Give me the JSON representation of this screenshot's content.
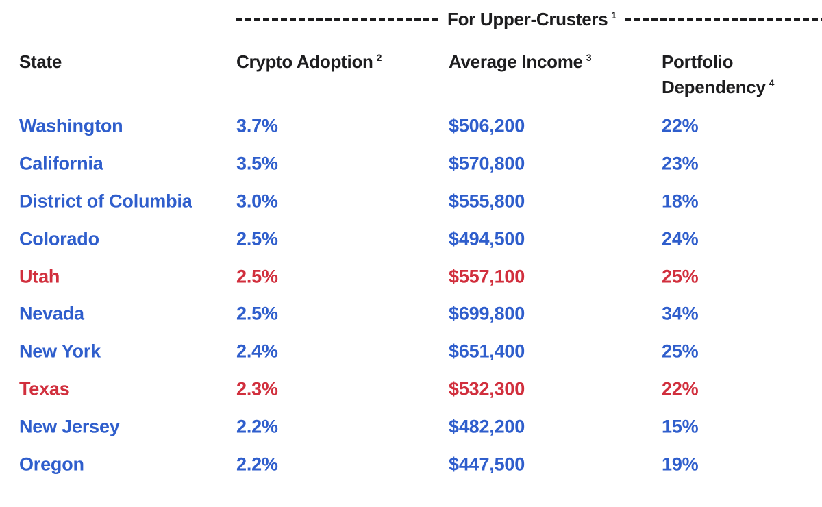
{
  "chart_data": {
    "type": "table",
    "group_header": {
      "text": "For Upper-Crusters",
      "superscript": "1"
    },
    "columns": [
      {
        "label": "State",
        "superscript": ""
      },
      {
        "label": "Crypto Adoption",
        "superscript": "2"
      },
      {
        "label": "Average Income",
        "superscript": "3"
      },
      {
        "label": "Portfolio Dependency",
        "superscript": "4"
      }
    ],
    "rows": [
      {
        "state": "Washington",
        "crypto_adoption": "3.7%",
        "average_income": "$506,200",
        "portfolio_dependency": "22%",
        "highlighted": false
      },
      {
        "state": "California",
        "crypto_adoption": "3.5%",
        "average_income": "$570,800",
        "portfolio_dependency": "23%",
        "highlighted": false
      },
      {
        "state": "District of Columbia",
        "crypto_adoption": "3.0%",
        "average_income": "$555,800",
        "portfolio_dependency": "18%",
        "highlighted": false
      },
      {
        "state": "Colorado",
        "crypto_adoption": "2.5%",
        "average_income": "$494,500",
        "portfolio_dependency": "24%",
        "highlighted": false
      },
      {
        "state": "Utah",
        "crypto_adoption": "2.5%",
        "average_income": "$557,100",
        "portfolio_dependency": "25%",
        "highlighted": true
      },
      {
        "state": "Nevada",
        "crypto_adoption": "2.5%",
        "average_income": "$699,800",
        "portfolio_dependency": "34%",
        "highlighted": false
      },
      {
        "state": "New York",
        "crypto_adoption": "2.4%",
        "average_income": "$651,400",
        "portfolio_dependency": "25%",
        "highlighted": false
      },
      {
        "state": "Texas",
        "crypto_adoption": "2.3%",
        "average_income": "$532,300",
        "portfolio_dependency": "22%",
        "highlighted": true
      },
      {
        "state": "New Jersey",
        "crypto_adoption": "2.2%",
        "average_income": "$482,200",
        "portfolio_dependency": "15%",
        "highlighted": false
      },
      {
        "state": "Oregon",
        "crypto_adoption": "2.2%",
        "average_income": "$447,500",
        "portfolio_dependency": "19%",
        "highlighted": false
      }
    ]
  },
  "colors": {
    "row_default_blue": "#2f5ecc",
    "row_highlight_red": "#d12f3d",
    "header_ink": "#1d1d1f",
    "background": "#ffffff"
  }
}
